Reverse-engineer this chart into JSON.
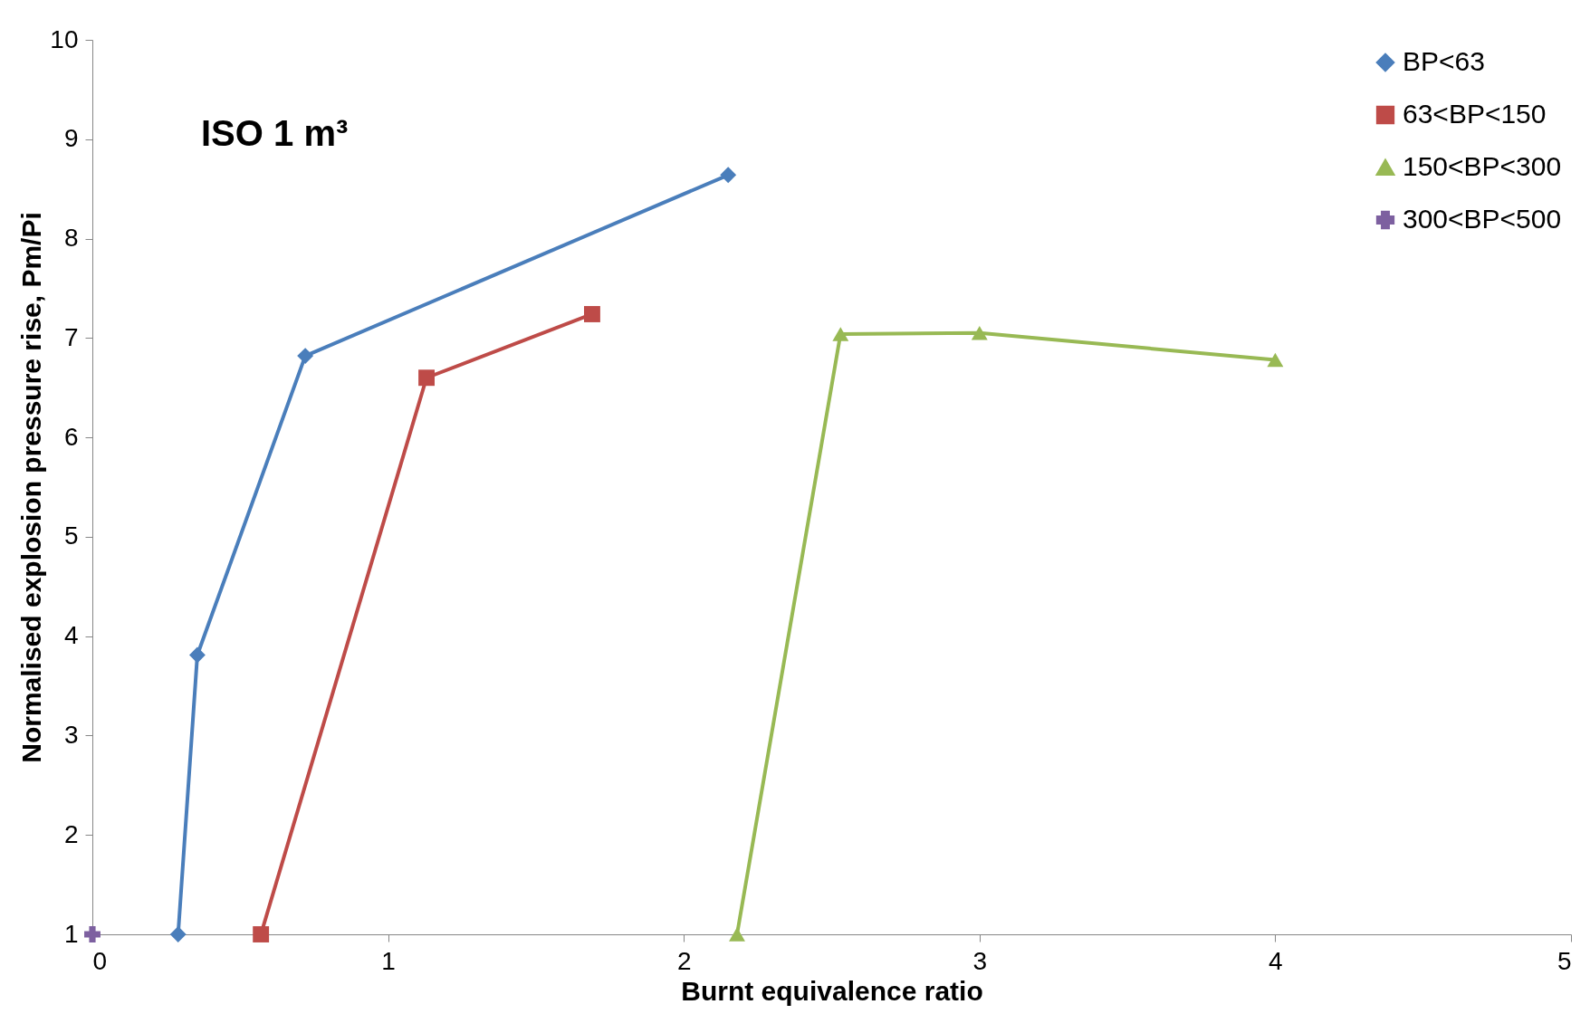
{
  "chart_data": {
    "type": "line",
    "xlabel": "Burnt equivalence ratio",
    "ylabel": "Normalised explosion pressure rise, Pm/Pi",
    "annotations": [
      "ISO 1 m³"
    ],
    "xlim": [
      0,
      5
    ],
    "xticks": [
      0,
      1,
      2,
      3,
      4,
      5
    ],
    "ylim": [
      1,
      10
    ],
    "yticks": [
      1,
      2,
      3,
      4,
      5,
      6,
      7,
      8,
      9,
      10
    ],
    "grid": false,
    "legend": "top right",
    "series": [
      {
        "name": "BP<63",
        "color": "#4a7ebb",
        "marker": "diamond",
        "x": [
          0.29,
          0.355,
          0.72,
          2.15
        ],
        "values": [
          1,
          3.81,
          6.82,
          8.64
        ]
      },
      {
        "name": "63<BP<150",
        "color": "#be4b48",
        "marker": "square",
        "x": [
          0.57,
          1.13,
          1.69
        ],
        "values": [
          1,
          6.6,
          7.24
        ]
      },
      {
        "name": "150<BP<300",
        "color": "#98b954",
        "marker": "triangle",
        "x": [
          2.18,
          2.53,
          3.0,
          4.0
        ],
        "values": [
          1,
          7.04,
          7.05,
          6.78
        ]
      },
      {
        "name": "300<BP<500",
        "color": "#7d60a0",
        "marker": "cross",
        "type": "scatter",
        "x": [
          0
        ],
        "values": [
          1
        ]
      }
    ]
  }
}
